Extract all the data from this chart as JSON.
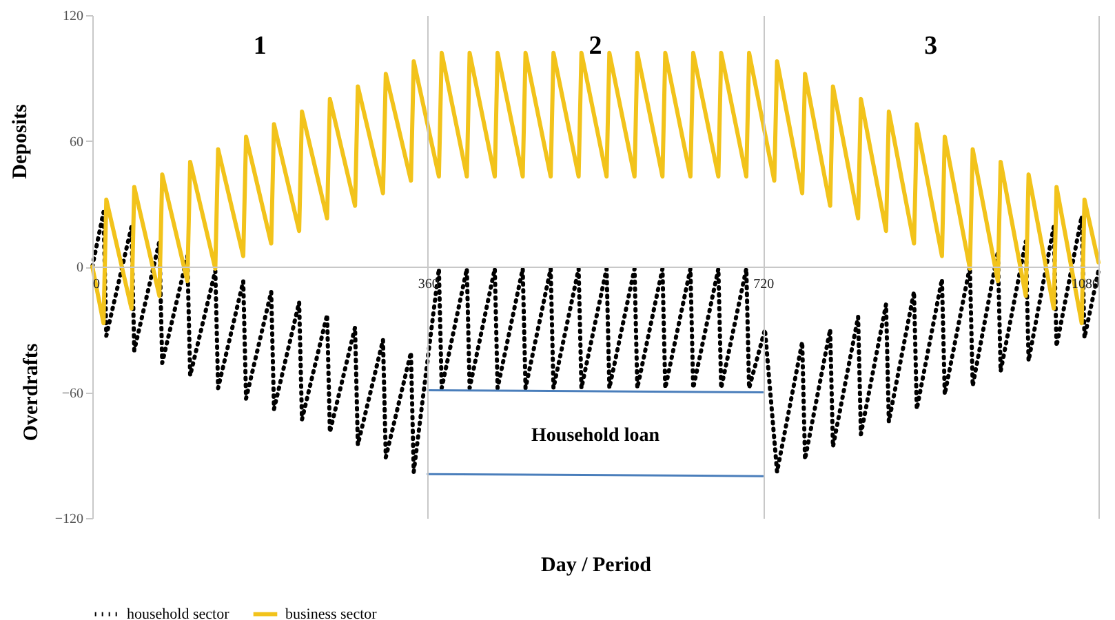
{
  "chart_data": {
    "type": "line",
    "xlabel": "Day / Period",
    "ylabel": "Deposits",
    "xlim": [
      0,
      1080
    ],
    "xticks": [
      0,
      360,
      720,
      {
        "value": 1080,
        "label": "1080"
      }
    ],
    "ylim": [
      -120,
      120
    ],
    "yticks": [
      -120,
      -60,
      0,
      60,
      120
    ],
    "grid": "x",
    "legend": "bottom",
    "annotations": [
      "1",
      "2",
      "3",
      "Overdrafts",
      "Household loan"
    ],
    "series": [
      {
        "name": "household sector",
        "type": "line",
        "color": "#000000",
        "line_style": "dotted",
        "x": [
          0,
          12,
          15,
          42,
          45,
          72,
          75,
          102,
          105,
          132,
          135,
          162,
          165,
          192,
          195,
          222,
          225,
          252,
          255,
          282,
          285,
          312,
          315,
          342,
          345,
          372,
          375,
          402,
          405,
          432,
          435,
          462,
          465,
          492,
          495,
          522,
          525,
          552,
          555,
          582,
          585,
          612,
          615,
          642,
          645,
          672,
          675,
          702,
          705,
          722,
          735,
          762,
          765,
          792,
          795,
          822,
          825,
          852,
          855,
          882,
          885,
          912,
          915,
          942,
          945,
          972,
          975,
          1002,
          1005,
          1032,
          1035,
          1062,
          1065,
          1080
        ],
        "values": [
          0,
          26,
          -33,
          19,
          -40,
          12,
          -46,
          5,
          -52,
          -2,
          -58,
          -7,
          -63,
          -12,
          -68,
          -17,
          -73,
          -23,
          -79,
          -29,
          -85,
          -35,
          -91,
          -41,
          -98,
          -1,
          -58,
          -1,
          -58,
          -1,
          -58,
          -1,
          -58,
          -1,
          -58,
          -1,
          -58,
          -1,
          -58,
          -1,
          -58,
          -1,
          -58,
          -1,
          -58,
          -1,
          -58,
          -1,
          -58,
          -30,
          -98,
          -36,
          -92,
          -30,
          -86,
          -24,
          -80,
          -18,
          -74,
          -12,
          -68,
          -6,
          -61,
          0,
          -57,
          7,
          -50,
          12,
          -45,
          19,
          -38,
          24,
          -34,
          -2
        ]
      },
      {
        "name": "business sector",
        "type": "line",
        "color": "#f2c31b",
        "line_style": "solid",
        "x": [
          0,
          12,
          15,
          42,
          45,
          72,
          75,
          102,
          105,
          132,
          135,
          162,
          165,
          192,
          195,
          222,
          225,
          252,
          255,
          282,
          285,
          312,
          315,
          342,
          345,
          372,
          375,
          402,
          405,
          432,
          435,
          462,
          465,
          492,
          495,
          522,
          525,
          552,
          555,
          582,
          585,
          612,
          615,
          642,
          645,
          672,
          675,
          702,
          705,
          732,
          735,
          762,
          765,
          792,
          795,
          822,
          825,
          852,
          855,
          882,
          885,
          912,
          915,
          942,
          945,
          972,
          975,
          1002,
          1005,
          1032,
          1035,
          1062,
          1065,
          1080
        ],
        "values": [
          0,
          -27,
          32,
          -20,
          38,
          -14,
          44,
          -7,
          50,
          -1,
          56,
          5,
          62,
          11,
          68,
          17,
          74,
          23,
          80,
          29,
          86,
          35,
          92,
          41,
          98,
          43,
          102,
          43,
          102,
          43,
          102,
          43,
          102,
          43,
          102,
          43,
          102,
          43,
          102,
          43,
          102,
          43,
          102,
          43,
          102,
          43,
          102,
          43,
          102,
          41,
          98,
          35,
          92,
          29,
          86,
          23,
          80,
          17,
          74,
          11,
          68,
          5,
          62,
          -1,
          56,
          -7,
          50,
          -14,
          44,
          -20,
          38,
          -27,
          32,
          2
        ]
      },
      {
        "type": "line",
        "color": "#4a7ebb",
        "line_style": "solid",
        "x": [
          360,
          720
        ],
        "values": [
          -59,
          -60
        ]
      },
      {
        "type": "line",
        "color": "#4a7ebb",
        "line_style": "solid",
        "x": [
          360,
          720
        ],
        "values": [
          -99,
          -100
        ]
      }
    ]
  }
}
